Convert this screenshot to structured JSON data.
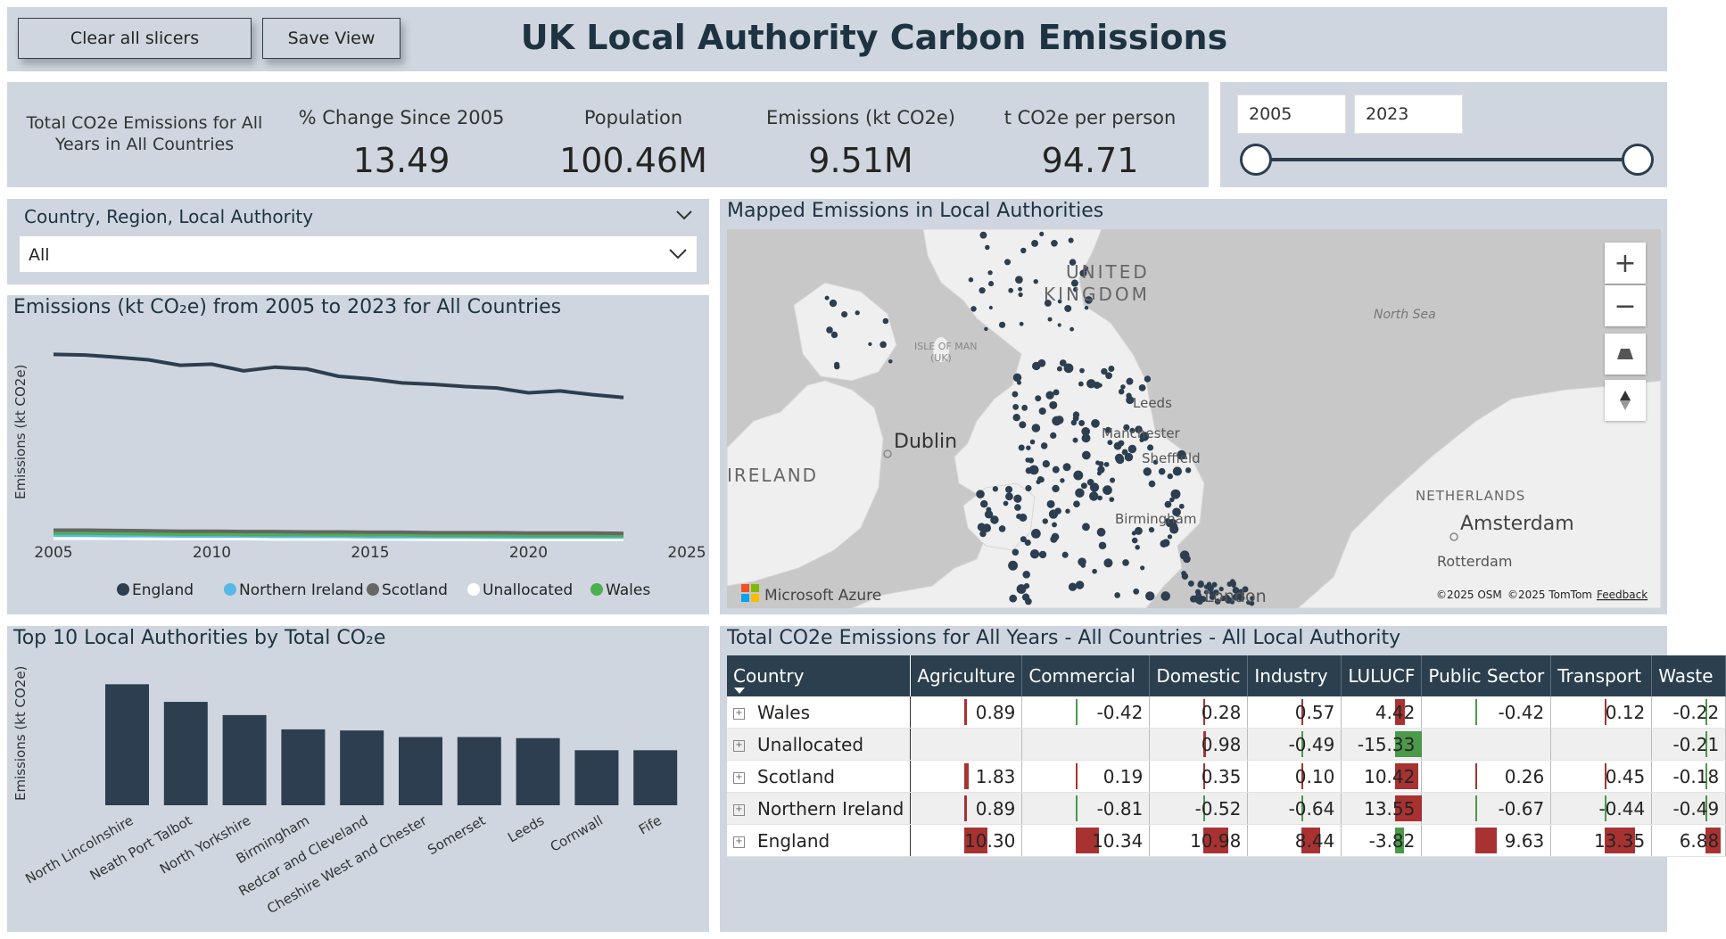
{
  "header": {
    "clear_label": "Clear all slicers",
    "save_label": "Save View",
    "title": "UK Local Authority Carbon Emissions"
  },
  "kpis": {
    "total_label": "Total CO2e Emissions for All Years in All Countries",
    "items": [
      {
        "label": "% Change Since 2005",
        "value": "13.49"
      },
      {
        "label": "Population",
        "value": "100.46M"
      },
      {
        "label": "Emissions (kt CO2e)",
        "value": "9.51M"
      },
      {
        "label": "t CO2e per person",
        "value": "94.71"
      }
    ]
  },
  "year_slicer": {
    "start": "2005",
    "end": "2023",
    "start_fraction": 0.0,
    "end_fraction": 1.0
  },
  "hierarchy_slicer": {
    "label": "Country, Region, Local Authority",
    "value": "All"
  },
  "line_chart": {
    "title": "Emissions (kt CO₂e) from 2005 to 2023 for All Countries",
    "ylabel": "Emissions (kt CO2e)",
    "xticks": [
      "2005",
      "2010",
      "2015",
      "2020",
      "2025"
    ],
    "legend": [
      "England",
      "Northern Ireland",
      "Scotland",
      "Unallocated",
      "Wales"
    ]
  },
  "bar_chart": {
    "title": "Top 10 Local Authorities by Total CO₂e",
    "ylabel": "Emissions (kt CO2e)"
  },
  "map": {
    "title": "Mapped Emissions in Local Authorities",
    "labels": {
      "uk": "UNITED KINGDOM",
      "north_sea": "North Sea",
      "isle_of_man": "ISLE OF MAN (UK)",
      "dublin": "Dublin",
      "ireland": "IRELAND",
      "leeds": "Leeds",
      "manchester": "Manchester",
      "sheffield": "Sheffield",
      "birmingham": "Birmingham",
      "london": "London",
      "netherlands": "NETHERLANDS",
      "amsterdam": "Amsterdam",
      "rotterdam": "Rotterdam"
    },
    "brand": "Microsoft Azure",
    "attribution_osm": "©2025 OSM",
    "attribution_tomtom": "©2025 TomTom",
    "feedback": "Feedback"
  },
  "matrix": {
    "title": "Total CO2e Emissions for All Years - All Countries - All Local Authority",
    "columns": [
      "Country",
      "Agriculture",
      "Commercial",
      "Domestic",
      "Industry",
      "LULUCF",
      "Public Sector",
      "Transport",
      "Waste"
    ],
    "rows": [
      {
        "country": "Wales",
        "cells": [
          "0.89",
          "-0.42",
          "0.28",
          "0.57",
          "4.42",
          "-0.42",
          "0.12",
          "-0.22"
        ]
      },
      {
        "country": "Unallocated",
        "cells": [
          "",
          "",
          "0.98",
          "-0.49",
          "-15.33",
          "",
          "",
          "-0.21"
        ]
      },
      {
        "country": "Scotland",
        "cells": [
          "1.83",
          "0.19",
          "0.35",
          "0.10",
          "10.42",
          "0.26",
          "0.45",
          "-0.18"
        ]
      },
      {
        "country": "Northern Ireland",
        "cells": [
          "0.89",
          "-0.81",
          "-0.52",
          "-0.64",
          "13.55",
          "-0.67",
          "-0.44",
          "-0.49"
        ]
      },
      {
        "country": "England",
        "cells": [
          "10.30",
          "10.34",
          "10.98",
          "8.44",
          "-3.82",
          "9.63",
          "13.35",
          "6.88"
        ]
      }
    ]
  },
  "colors": {
    "dark": "#2c3e50",
    "panel": "#cfd6df",
    "pos": "#a83232",
    "neg": "#4a9a4a"
  },
  "chart_data": [
    {
      "type": "line",
      "title": "Emissions (kt CO₂e) from 2005 to 2023 for All Countries",
      "ylabel": "Emissions (kt CO2e)",
      "xlim": [
        2005,
        2025
      ],
      "x": [
        2005,
        2006,
        2007,
        2008,
        2009,
        2010,
        2011,
        2012,
        2013,
        2014,
        2015,
        2016,
        2017,
        2018,
        2019,
        2020,
        2021,
        2022,
        2023
      ],
      "series": [
        {
          "name": "England",
          "color": "#2c3e50",
          "values": [
            530,
            528,
            522,
            515,
            500,
            503,
            485,
            495,
            490,
            470,
            463,
            452,
            448,
            442,
            438,
            425,
            430,
            420,
            412
          ]
        },
        {
          "name": "Scotland",
          "color": "#666666",
          "values": [
            50,
            50,
            49,
            48,
            47,
            47,
            46,
            46,
            45,
            45,
            44,
            44,
            43,
            43,
            43,
            42,
            42,
            42,
            41
          ]
        },
        {
          "name": "Wales",
          "color": "#4caf50",
          "values": [
            42,
            42,
            41,
            40,
            39,
            39,
            38,
            38,
            38,
            37,
            37,
            37,
            36,
            36,
            36,
            35,
            35,
            35,
            35
          ]
        },
        {
          "name": "Northern Ireland",
          "color": "#57b8e8",
          "values": [
            36,
            36,
            35,
            35,
            34,
            34,
            34,
            33,
            33,
            33,
            32,
            32,
            32,
            32,
            31,
            31,
            31,
            31,
            31
          ]
        },
        {
          "name": "Unallocated",
          "color": "#ffffff",
          "values": [
            28,
            28,
            28,
            27,
            27,
            27,
            27,
            26,
            26,
            26,
            26,
            26,
            25,
            25,
            25,
            25,
            25,
            25,
            25
          ]
        }
      ]
    },
    {
      "type": "bar",
      "title": "Top 10 Local Authorities by Total CO₂e",
      "ylabel": "Emissions (kt CO2e)",
      "ylim": [
        0,
        120
      ],
      "categories": [
        "North Lincolnshire",
        "Neath Port Talbot",
        "North Yorkshire",
        "Birmingham",
        "Redcar and Cleveland",
        "Cheshire West and Chester",
        "Somerset",
        "Leeds",
        "Cornwall",
        "Fife"
      ],
      "values": [
        110,
        94,
        82,
        69,
        68,
        62,
        62,
        61,
        50,
        50
      ]
    }
  ]
}
